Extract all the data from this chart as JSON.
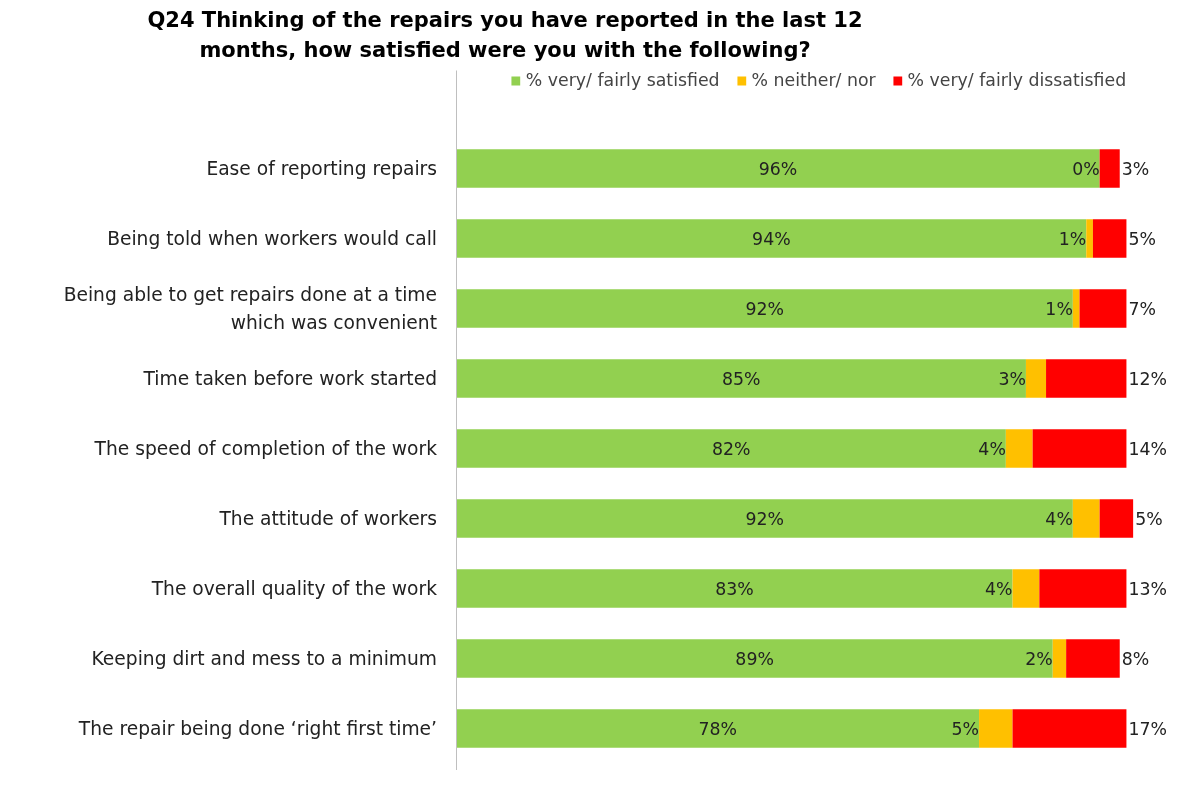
{
  "chart_data": {
    "type": "bar",
    "orientation": "horizontal",
    "stacked": true,
    "legend": "top",
    "grid": false,
    "title": "Q24 Thinking of the repairs you have reported in the last 12\nmonths, how satisfied were you with the following?",
    "categories": [
      "Ease of reporting repairs",
      "Being told when workers would call",
      "Being able to get repairs done at a time\nwhich was convenient",
      "Time taken before work started",
      "The speed of completion of the work",
      "The attitude of workers",
      "The overall quality of the work",
      "Keeping dirt and mess to a minimum",
      "The repair being done ‘right first time’"
    ],
    "series": [
      {
        "name": "% very/ fairly satisfied",
        "color": "#92d050",
        "values": [
          96,
          94,
          92,
          85,
          82,
          92,
          83,
          89,
          78
        ],
        "value_labels": [
          "96%",
          "94%",
          "92%",
          "85%",
          "82%",
          "92%",
          "83%",
          "89%",
          "78%"
        ]
      },
      {
        "name": "% neither/ nor",
        "color": "#ffc000",
        "values": [
          0,
          1,
          1,
          3,
          4,
          4,
          4,
          2,
          5
        ],
        "value_labels": [
          "0%",
          "1%",
          "1%",
          "3%",
          "4%",
          "4%",
          "4%",
          "2%",
          "5%"
        ]
      },
      {
        "name": "% very/ fairly dissatisfied",
        "color": "#ff0000",
        "values": [
          3,
          5,
          7,
          12,
          14,
          5,
          13,
          8,
          17
        ],
        "value_labels": [
          "3%",
          "5%",
          "7%",
          "12%",
          "14%",
          "5%",
          "13%",
          "8%",
          "17%"
        ]
      }
    ]
  }
}
